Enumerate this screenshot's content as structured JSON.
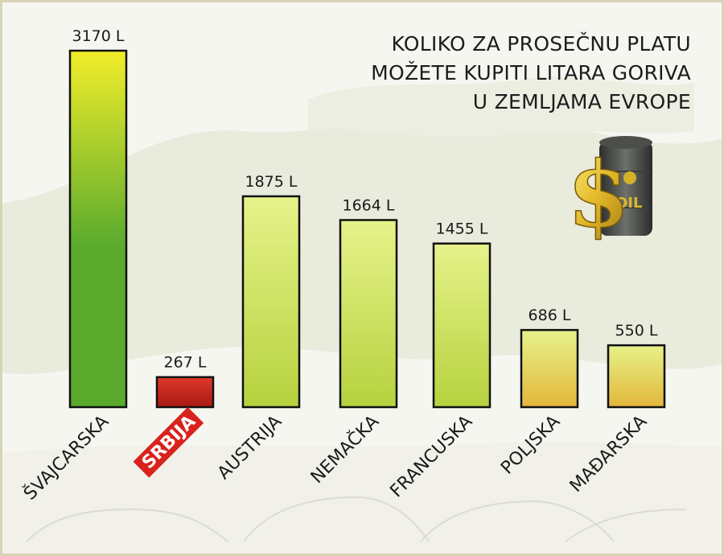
{
  "title": {
    "lines": [
      "KOLIKO ZA PROSEČNU PLATU",
      "MOŽETE KUPITI LITARA GORIVA",
      "U ZEMLJAMA EVROPE"
    ]
  },
  "icon": {
    "name": "dollar-oil-barrel-icon",
    "barrel_text": "OIL"
  },
  "colors": {
    "bar_top": "#f2ee2a",
    "bar_green": "#5aaa2e",
    "bar_light_top": "#e6f28a",
    "bar_light_bottom": "#b6d23e",
    "bar_orange_bottom": "#e3b73a",
    "highlight_bar": "#c8241b",
    "highlight_label_bg": "#d8231c"
  },
  "chart_data": {
    "type": "bar",
    "categories": [
      "ŠVAJCARSKA",
      "SRBIJA",
      "AUSTRIJA",
      "NEMAČKA",
      "FRANCUSKA",
      "POLJSKA",
      "MAĐARSKA"
    ],
    "values": [
      3170,
      267,
      1875,
      1664,
      1455,
      686,
      550
    ],
    "value_labels": [
      "3170 L",
      "267 L",
      "1875 L",
      "1664 L",
      "1455 L",
      "686 L",
      "550 L"
    ],
    "highlight": "SRBIJA",
    "unit": "L",
    "title": "KOLIKO ZA PROSEČNU PLATU MOŽETE KUPITI LITARA GORIVA U ZEMLJAMA EVROPE",
    "xlabel": "",
    "ylabel": "",
    "ylim": [
      0,
      3170
    ],
    "grid": false,
    "legend": "none"
  }
}
